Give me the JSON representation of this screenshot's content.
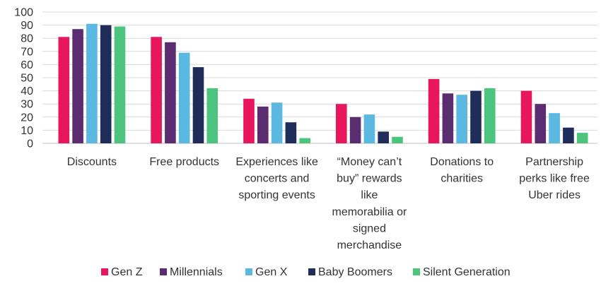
{
  "chart_data": {
    "type": "bar",
    "title": "",
    "xlabel": "",
    "ylabel": "",
    "ylim": [
      0,
      100
    ],
    "yticks": [
      0,
      10,
      20,
      30,
      40,
      50,
      60,
      70,
      80,
      90,
      100
    ],
    "grid": true,
    "legend": "bottom",
    "categories": [
      [
        "Discounts"
      ],
      [
        "Free products"
      ],
      [
        "Experiences like",
        "concerts and",
        "sporting events"
      ],
      [
        "“Money can’t",
        "buy” rewards",
        "like",
        "memorabilia or",
        "signed",
        "merchandise"
      ],
      [
        "Donations to",
        "charities"
      ],
      [
        "Partnership",
        "perks like free",
        "Uber rides"
      ]
    ],
    "series": [
      {
        "name": "Gen Z",
        "color": "#e8175d",
        "values": [
          81,
          81,
          34,
          30,
          49,
          40
        ]
      },
      {
        "name": "Millennials",
        "color": "#5b2c6f",
        "values": [
          87,
          77,
          28,
          20,
          38,
          30
        ]
      },
      {
        "name": "Gen X",
        "color": "#5bb8e0",
        "values": [
          91,
          69,
          31,
          22,
          37,
          23
        ]
      },
      {
        "name": "Baby Boomers",
        "color": "#1f2d5a",
        "values": [
          90,
          58,
          16,
          9,
          40,
          12
        ]
      },
      {
        "name": "Silent Generation",
        "color": "#4cc47e",
        "values": [
          89,
          42,
          4,
          5,
          42,
          8
        ]
      }
    ]
  }
}
